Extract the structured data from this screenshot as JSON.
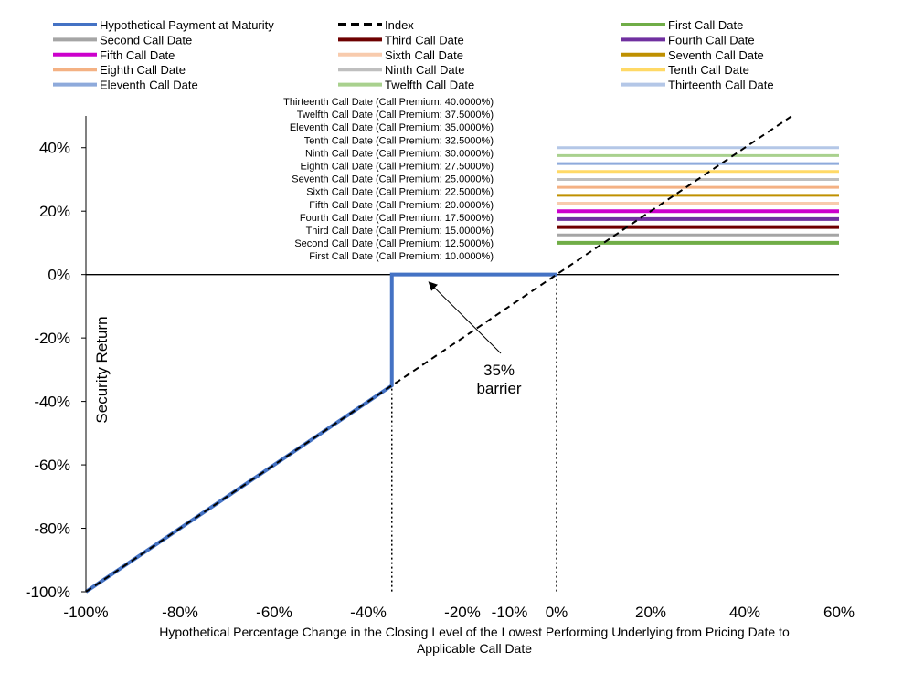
{
  "chart_data": {
    "type": "line",
    "xlabel": "Hypothetical Percentage Change in the Closing Level of the Lowest Performing Underlying from Pricing Date to Applicable Call Date",
    "ylabel": "Security Return",
    "xlim": [
      -1.0,
      0.6
    ],
    "ylim": [
      -1.0,
      0.5
    ],
    "x_ticks": [
      {
        "value": -1.0,
        "label": "-100%"
      },
      {
        "value": -0.8,
        "label": "-80%"
      },
      {
        "value": -0.6,
        "label": "-60%"
      },
      {
        "value": -0.4,
        "label": "-40%"
      },
      {
        "value": -0.2,
        "label": "-20%"
      },
      {
        "value": -0.1,
        "label": "-10%"
      },
      {
        "value": 0.0,
        "label": "0%"
      },
      {
        "value": 0.2,
        "label": "20%"
      },
      {
        "value": 0.4,
        "label": "40%"
      },
      {
        "value": 0.6,
        "label": "60%"
      }
    ],
    "y_ticks": [
      {
        "value": 0.4,
        "label": "40%"
      },
      {
        "value": 0.2,
        "label": "20%"
      },
      {
        "value": 0.0,
        "label": "0%"
      },
      {
        "value": -0.2,
        "label": "-20%"
      },
      {
        "value": -0.4,
        "label": "-40%"
      },
      {
        "value": -0.6,
        "label": "-60%"
      },
      {
        "value": -0.8,
        "label": "-80%"
      },
      {
        "value": -1.0,
        "label": "-100%"
      }
    ],
    "series": [
      {
        "name": "Hypothetical Payment at Maturity",
        "color": "#4472c4",
        "style": "solid",
        "x": [
          -1.0,
          -0.35,
          -0.35,
          0.0
        ],
        "y": [
          -1.0,
          -0.35,
          0.0,
          0.0
        ]
      },
      {
        "name": "Index",
        "color": "#000000",
        "style": "dashed",
        "x": [
          -1.0,
          0.5
        ],
        "y": [
          -1.0,
          0.5
        ]
      },
      {
        "name": "First Call Date",
        "color": "#70ad47",
        "x": [
          0.0,
          0.6
        ],
        "y": [
          0.1,
          0.1
        ]
      },
      {
        "name": "Second Call Date",
        "color": "#a5a5a5",
        "x": [
          0.0,
          0.6
        ],
        "y": [
          0.125,
          0.125
        ]
      },
      {
        "name": "Third Call Date",
        "color": "#6e0000",
        "x": [
          0.0,
          0.6
        ],
        "y": [
          0.15,
          0.15
        ]
      },
      {
        "name": "Fourth Call Date",
        "color": "#7030a0",
        "x": [
          0.0,
          0.6
        ],
        "y": [
          0.175,
          0.175
        ]
      },
      {
        "name": "Fifth Call Date",
        "color": "#cc00cc",
        "x": [
          0.0,
          0.6
        ],
        "y": [
          0.2,
          0.2
        ]
      },
      {
        "name": "Sixth Call Date",
        "color": "#f8cbad",
        "x": [
          0.0,
          0.6
        ],
        "y": [
          0.225,
          0.225
        ]
      },
      {
        "name": "Seventh Call Date",
        "color": "#bf9000",
        "x": [
          0.0,
          0.6
        ],
        "y": [
          0.25,
          0.25
        ]
      },
      {
        "name": "Eighth Call Date",
        "color": "#f4b183",
        "x": [
          0.0,
          0.6
        ],
        "y": [
          0.275,
          0.275
        ]
      },
      {
        "name": "Ninth Call Date",
        "color": "#bfbfbf",
        "x": [
          0.0,
          0.6
        ],
        "y": [
          0.3,
          0.3
        ]
      },
      {
        "name": "Tenth Call Date",
        "color": "#ffd966",
        "x": [
          0.0,
          0.6
        ],
        "y": [
          0.325,
          0.325
        ]
      },
      {
        "name": "Eleventh Call Date",
        "color": "#8eaadb",
        "x": [
          0.0,
          0.6
        ],
        "y": [
          0.35,
          0.35
        ]
      },
      {
        "name": "Twelfth Call Date",
        "color": "#a9d18e",
        "x": [
          0.0,
          0.6
        ],
        "y": [
          0.375,
          0.375
        ]
      },
      {
        "name": "Thirteenth Call Date",
        "color": "#b4c7e7",
        "x": [
          0.0,
          0.6
        ],
        "y": [
          0.4,
          0.4
        ]
      }
    ],
    "legend": {
      "placement": "top",
      "columns": 3,
      "items": [
        {
          "label": "Hypothetical Payment at Maturity",
          "color": "#4472c4",
          "style": "solid"
        },
        {
          "label": "Index",
          "color": "#000000",
          "style": "dashed"
        },
        {
          "label": "First Call Date",
          "color": "#70ad47",
          "style": "solid"
        },
        {
          "label": "Second Call Date",
          "color": "#a5a5a5",
          "style": "solid"
        },
        {
          "label": "Third Call Date",
          "color": "#6e0000",
          "style": "solid"
        },
        {
          "label": "Fourth Call Date",
          "color": "#7030a0",
          "style": "solid"
        },
        {
          "label": "Fifth Call Date",
          "color": "#cc00cc",
          "style": "solid"
        },
        {
          "label": "Sixth Call Date",
          "color": "#f8cbad",
          "style": "solid"
        },
        {
          "label": "Seventh Call Date",
          "color": "#bf9000",
          "style": "solid"
        },
        {
          "label": "Eighth Call Date",
          "color": "#f4b183",
          "style": "solid"
        },
        {
          "label": "Ninth Call Date",
          "color": "#bfbfbf",
          "style": "solid"
        },
        {
          "label": "Tenth Call Date",
          "color": "#ffd966",
          "style": "solid"
        },
        {
          "label": "Eleventh Call Date",
          "color": "#8eaadb",
          "style": "solid"
        },
        {
          "label": "Twelfth Call Date",
          "color": "#a9d18e",
          "style": "solid"
        },
        {
          "label": "Thirteenth Call Date",
          "color": "#b4c7e7",
          "style": "solid"
        }
      ]
    },
    "premium_labels": [
      {
        "text": "Thirteenth Call Date (Call Premium: 40.0000%)"
      },
      {
        "text": "Twelfth Call Date (Call Premium: 37.5000%)"
      },
      {
        "text": "Eleventh Call Date (Call Premium: 35.0000%)"
      },
      {
        "text": "Tenth Call Date (Call Premium: 32.5000%)"
      },
      {
        "text": "Ninth Call Date (Call Premium: 30.0000%)"
      },
      {
        "text": "Eighth Call Date (Call Premium: 27.5000%)"
      },
      {
        "text": "Seventh Call Date (Call Premium: 25.0000%)"
      },
      {
        "text": "Sixth Call Date (Call Premium: 22.5000%)"
      },
      {
        "text": "Fifth Call Date (Call Premium: 20.0000%)"
      },
      {
        "text": "Fourth Call Date (Call Premium: 17.5000%)"
      },
      {
        "text": "Third Call Date (Call Premium: 15.0000%)"
      },
      {
        "text": "Second Call Date (Call Premium: 12.5000%)"
      },
      {
        "text": "First Call Date (Call Premium: 10.0000%)"
      }
    ],
    "annotation": {
      "line1": "35%",
      "line2": "barrier",
      "arrow_target": {
        "x": -0.27,
        "y": 0.0
      }
    },
    "reference_lines": [
      {
        "orientation": "vertical",
        "x": -0.35,
        "style": "dotted"
      },
      {
        "orientation": "vertical",
        "x": 0.0,
        "style": "dotted"
      },
      {
        "orientation": "horizontal",
        "y": 0.0,
        "style": "solid"
      }
    ],
    "grid": false
  }
}
